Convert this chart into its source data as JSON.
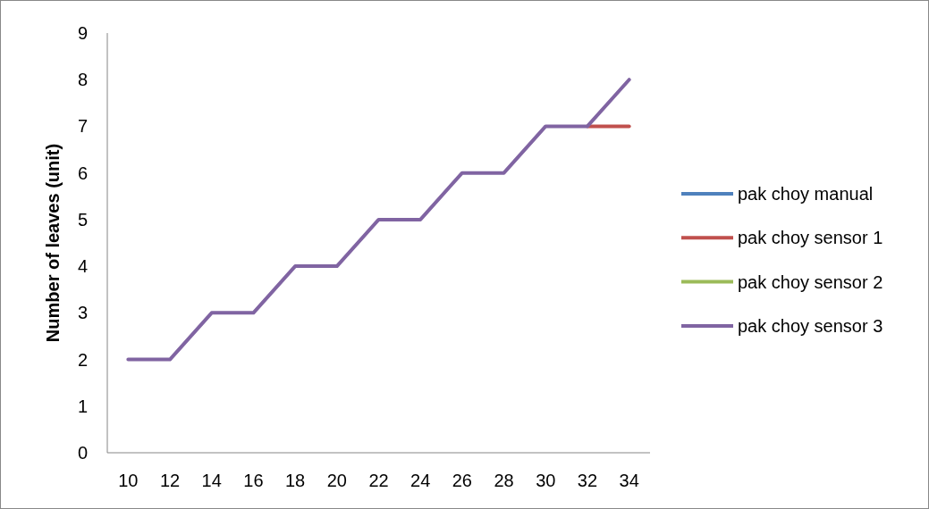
{
  "chart_data": {
    "type": "line",
    "ylabel": "Number of leaves (unit)",
    "categories": [
      "10",
      "12",
      "14",
      "16",
      "18",
      "20",
      "22",
      "24",
      "26",
      "28",
      "30",
      "32",
      "34"
    ],
    "ylim": [
      0,
      9
    ],
    "yticks": [
      0,
      1,
      2,
      3,
      4,
      5,
      6,
      7,
      8,
      9
    ],
    "grid": false,
    "legend": "right",
    "marker": "none",
    "line_style": "solid",
    "series": [
      {
        "name": "pak choy manual",
        "color": "#4f81bd",
        "values": [
          null,
          null,
          null,
          null,
          null,
          null,
          null,
          null,
          null,
          null,
          null,
          null,
          null
        ]
      },
      {
        "name": "pak choy sensor 1",
        "color": "#c0504d",
        "values": [
          null,
          null,
          null,
          null,
          null,
          null,
          null,
          null,
          null,
          null,
          null,
          7,
          7
        ]
      },
      {
        "name": "pak choy sensor 2",
        "color": "#9bbb59",
        "values": [
          null,
          null,
          null,
          null,
          null,
          null,
          null,
          null,
          null,
          null,
          null,
          null,
          null
        ]
      },
      {
        "name": "pak choy sensor 3",
        "color": "#8064a2",
        "values": [
          2,
          2,
          3,
          3,
          4,
          4,
          5,
          5,
          6,
          6,
          7,
          7,
          8
        ]
      }
    ]
  }
}
